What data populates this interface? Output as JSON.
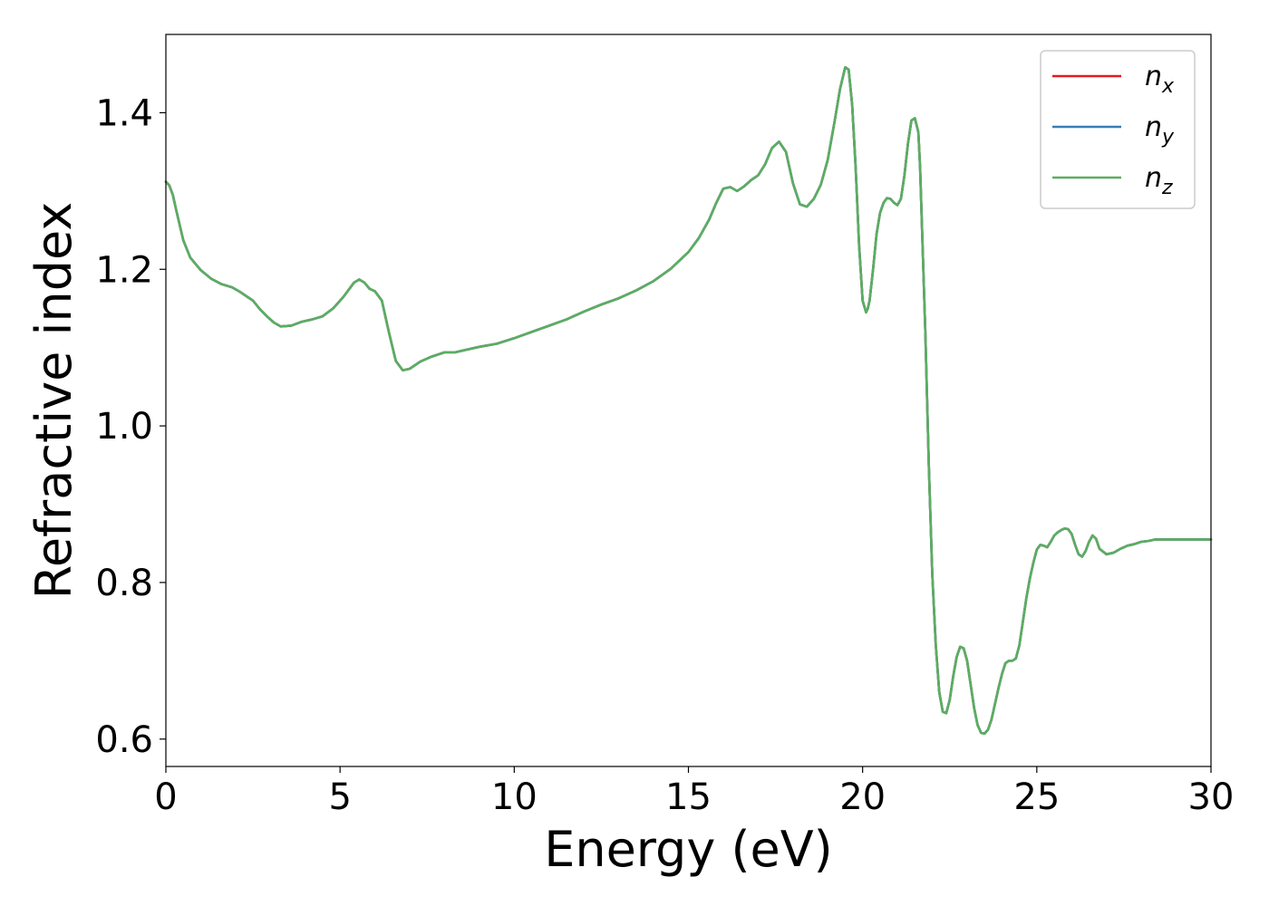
{
  "chart_data": {
    "type": "line",
    "xlabel": "Energy (eV)",
    "ylabel": "Refractive index",
    "xlim": [
      0,
      30
    ],
    "ylim": [
      0.565,
      1.5
    ],
    "xticks": [
      0,
      5,
      10,
      15,
      20,
      25,
      30
    ],
    "xtick_labels": [
      "0",
      "5",
      "10",
      "15",
      "20",
      "25",
      "30"
    ],
    "yticks": [
      0.6,
      0.8,
      1.0,
      1.2,
      1.4
    ],
    "ytick_labels": [
      "0.6",
      "0.8",
      "1.0",
      "1.2",
      "1.4"
    ],
    "grid": false,
    "legend_position": "top-right",
    "x": [
      0,
      0.1,
      0.2,
      0.3,
      0.5,
      0.7,
      1.0,
      1.3,
      1.6,
      1.9,
      2.1,
      2.3,
      2.5,
      2.7,
      2.9,
      3.1,
      3.3,
      3.6,
      3.9,
      4.2,
      4.5,
      4.8,
      5.1,
      5.4,
      5.55,
      5.7,
      5.85,
      6.0,
      6.2,
      6.4,
      6.6,
      6.8,
      7.0,
      7.3,
      7.6,
      8.0,
      8.3,
      8.6,
      9.0,
      9.5,
      10.0,
      10.5,
      11.0,
      11.5,
      12.0,
      12.5,
      13.0,
      13.5,
      14.0,
      14.5,
      15.0,
      15.3,
      15.6,
      15.8,
      16.0,
      16.2,
      16.4,
      16.6,
      16.8,
      17.0,
      17.2,
      17.4,
      17.6,
      17.8,
      18.0,
      18.2,
      18.4,
      18.6,
      18.8,
      19.0,
      19.2,
      19.35,
      19.5,
      19.6,
      19.7,
      19.8,
      19.9,
      20.0,
      20.1,
      20.15,
      20.2,
      20.3,
      20.4,
      20.5,
      20.6,
      20.7,
      20.8,
      20.9,
      21.0,
      21.1,
      21.2,
      21.3,
      21.4,
      21.5,
      21.6,
      21.65,
      21.7,
      21.8,
      21.9,
      22.0,
      22.1,
      22.2,
      22.3,
      22.4,
      22.5,
      22.6,
      22.7,
      22.8,
      22.9,
      23.0,
      23.1,
      23.2,
      23.3,
      23.4,
      23.5,
      23.6,
      23.7,
      23.8,
      23.9,
      24.0,
      24.1,
      24.2,
      24.3,
      24.4,
      24.5,
      24.6,
      24.7,
      24.8,
      24.9,
      25.0,
      25.1,
      25.2,
      25.3,
      25.4,
      25.5,
      25.6,
      25.7,
      25.8,
      25.9,
      26.0,
      26.1,
      26.2,
      26.3,
      26.4,
      26.5,
      26.6,
      26.7,
      26.8,
      27.0,
      27.2,
      27.4,
      27.6,
      27.8,
      28.0,
      28.2,
      28.4,
      28.6,
      28.8,
      29.0,
      29.2,
      29.4,
      29.6,
      29.8,
      30.0
    ],
    "series": [
      {
        "name": "n",
        "subscript": "x",
        "color": "#e41a1c",
        "y": [
          1.312,
          1.307,
          1.295,
          1.275,
          1.237,
          1.215,
          1.199,
          1.188,
          1.181,
          1.177,
          1.172,
          1.166,
          1.16,
          1.149,
          1.14,
          1.132,
          1.127,
          1.128,
          1.133,
          1.136,
          1.14,
          1.15,
          1.165,
          1.183,
          1.187,
          1.183,
          1.175,
          1.172,
          1.16,
          1.12,
          1.083,
          1.071,
          1.073,
          1.082,
          1.088,
          1.094,
          1.094,
          1.097,
          1.101,
          1.105,
          1.112,
          1.12,
          1.128,
          1.136,
          1.146,
          1.155,
          1.163,
          1.173,
          1.185,
          1.201,
          1.222,
          1.24,
          1.264,
          1.285,
          1.303,
          1.305,
          1.3,
          1.306,
          1.314,
          1.32,
          1.334,
          1.355,
          1.363,
          1.35,
          1.31,
          1.283,
          1.28,
          1.29,
          1.308,
          1.34,
          1.39,
          1.43,
          1.458,
          1.455,
          1.41,
          1.33,
          1.23,
          1.16,
          1.145,
          1.15,
          1.16,
          1.2,
          1.245,
          1.272,
          1.285,
          1.291,
          1.29,
          1.285,
          1.282,
          1.29,
          1.32,
          1.36,
          1.39,
          1.393,
          1.375,
          1.33,
          1.26,
          1.12,
          0.95,
          0.81,
          0.72,
          0.66,
          0.635,
          0.633,
          0.65,
          0.68,
          0.705,
          0.718,
          0.716,
          0.7,
          0.67,
          0.64,
          0.618,
          0.608,
          0.607,
          0.612,
          0.625,
          0.645,
          0.665,
          0.683,
          0.697,
          0.7,
          0.7,
          0.703,
          0.72,
          0.75,
          0.78,
          0.805,
          0.825,
          0.842,
          0.848,
          0.847,
          0.845,
          0.852,
          0.86,
          0.864,
          0.867,
          0.869,
          0.868,
          0.862,
          0.848,
          0.836,
          0.833,
          0.84,
          0.852,
          0.86,
          0.856,
          0.843,
          0.836,
          0.838,
          0.843,
          0.847,
          0.849,
          0.852,
          0.853,
          0.855,
          0.855,
          0.855,
          0.855,
          0.855,
          0.855,
          0.855,
          0.855,
          0.855
        ]
      },
      {
        "name": "n",
        "subscript": "y",
        "color": "#377eb8",
        "y": [
          1.312,
          1.307,
          1.295,
          1.275,
          1.237,
          1.215,
          1.199,
          1.188,
          1.181,
          1.177,
          1.172,
          1.166,
          1.16,
          1.149,
          1.14,
          1.132,
          1.127,
          1.128,
          1.133,
          1.136,
          1.14,
          1.15,
          1.165,
          1.183,
          1.187,
          1.183,
          1.175,
          1.172,
          1.16,
          1.12,
          1.083,
          1.071,
          1.073,
          1.082,
          1.088,
          1.094,
          1.094,
          1.097,
          1.101,
          1.105,
          1.112,
          1.12,
          1.128,
          1.136,
          1.146,
          1.155,
          1.163,
          1.173,
          1.185,
          1.201,
          1.222,
          1.24,
          1.264,
          1.285,
          1.303,
          1.305,
          1.3,
          1.306,
          1.314,
          1.32,
          1.334,
          1.355,
          1.363,
          1.35,
          1.31,
          1.283,
          1.28,
          1.29,
          1.308,
          1.34,
          1.39,
          1.43,
          1.458,
          1.455,
          1.41,
          1.33,
          1.23,
          1.16,
          1.145,
          1.15,
          1.16,
          1.2,
          1.245,
          1.272,
          1.285,
          1.291,
          1.29,
          1.285,
          1.282,
          1.29,
          1.32,
          1.36,
          1.39,
          1.393,
          1.375,
          1.33,
          1.26,
          1.12,
          0.95,
          0.81,
          0.72,
          0.66,
          0.635,
          0.633,
          0.65,
          0.68,
          0.705,
          0.718,
          0.716,
          0.7,
          0.67,
          0.64,
          0.618,
          0.608,
          0.607,
          0.612,
          0.625,
          0.645,
          0.665,
          0.683,
          0.697,
          0.7,
          0.7,
          0.703,
          0.72,
          0.75,
          0.78,
          0.805,
          0.825,
          0.842,
          0.848,
          0.847,
          0.845,
          0.852,
          0.86,
          0.864,
          0.867,
          0.869,
          0.868,
          0.862,
          0.848,
          0.836,
          0.833,
          0.84,
          0.852,
          0.86,
          0.856,
          0.843,
          0.836,
          0.838,
          0.843,
          0.847,
          0.849,
          0.852,
          0.853,
          0.855,
          0.855,
          0.855,
          0.855,
          0.855,
          0.855,
          0.855,
          0.855,
          0.855
        ]
      },
      {
        "name": "n",
        "subscript": "z",
        "color": "#5aae61",
        "y": [
          1.312,
          1.307,
          1.295,
          1.275,
          1.237,
          1.215,
          1.199,
          1.188,
          1.181,
          1.177,
          1.172,
          1.166,
          1.16,
          1.149,
          1.14,
          1.132,
          1.127,
          1.128,
          1.133,
          1.136,
          1.14,
          1.15,
          1.165,
          1.183,
          1.187,
          1.183,
          1.175,
          1.172,
          1.16,
          1.12,
          1.083,
          1.071,
          1.073,
          1.082,
          1.088,
          1.094,
          1.094,
          1.097,
          1.101,
          1.105,
          1.112,
          1.12,
          1.128,
          1.136,
          1.146,
          1.155,
          1.163,
          1.173,
          1.185,
          1.201,
          1.222,
          1.24,
          1.264,
          1.285,
          1.303,
          1.305,
          1.3,
          1.306,
          1.314,
          1.32,
          1.334,
          1.355,
          1.363,
          1.35,
          1.31,
          1.283,
          1.28,
          1.29,
          1.308,
          1.34,
          1.39,
          1.43,
          1.458,
          1.455,
          1.41,
          1.33,
          1.23,
          1.16,
          1.145,
          1.15,
          1.16,
          1.2,
          1.245,
          1.272,
          1.285,
          1.291,
          1.29,
          1.285,
          1.282,
          1.29,
          1.32,
          1.36,
          1.39,
          1.393,
          1.375,
          1.33,
          1.26,
          1.12,
          0.95,
          0.81,
          0.72,
          0.66,
          0.635,
          0.633,
          0.65,
          0.68,
          0.705,
          0.718,
          0.716,
          0.7,
          0.67,
          0.64,
          0.618,
          0.608,
          0.607,
          0.612,
          0.625,
          0.645,
          0.665,
          0.683,
          0.697,
          0.7,
          0.7,
          0.703,
          0.72,
          0.75,
          0.78,
          0.805,
          0.825,
          0.842,
          0.848,
          0.847,
          0.845,
          0.852,
          0.86,
          0.864,
          0.867,
          0.869,
          0.868,
          0.862,
          0.848,
          0.836,
          0.833,
          0.84,
          0.852,
          0.86,
          0.856,
          0.843,
          0.836,
          0.838,
          0.843,
          0.847,
          0.849,
          0.852,
          0.853,
          0.855,
          0.855,
          0.855,
          0.855,
          0.855,
          0.855,
          0.855,
          0.855,
          0.855
        ]
      }
    ]
  }
}
